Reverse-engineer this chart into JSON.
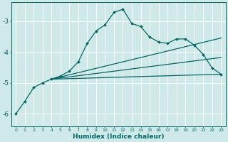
{
  "xlabel": "Humidex (Indice chaleur)",
  "background_color": "#cfe9e9",
  "grid_color": "#ffffff",
  "line_color": "#006666",
  "xlim": [
    -0.5,
    23.5
  ],
  "ylim": [
    -6.4,
    -2.4
  ],
  "yticks": [
    -6,
    -5,
    -4,
    -3
  ],
  "xticks": [
    0,
    1,
    2,
    3,
    4,
    5,
    6,
    7,
    8,
    9,
    10,
    11,
    12,
    13,
    14,
    15,
    16,
    17,
    18,
    19,
    20,
    21,
    22,
    23
  ],
  "series1_x": [
    0,
    1,
    2,
    3,
    4,
    5,
    6,
    7,
    8,
    9,
    10,
    11,
    12,
    13,
    14,
    15,
    16,
    17,
    18,
    19,
    20,
    21,
    22,
    23
  ],
  "series1_y": [
    -6.0,
    -5.6,
    -5.15,
    -5.0,
    -4.88,
    -4.78,
    -4.62,
    -4.32,
    -3.72,
    -3.32,
    -3.12,
    -2.72,
    -2.62,
    -3.08,
    -3.18,
    -3.52,
    -3.68,
    -3.72,
    -3.58,
    -3.58,
    -3.78,
    -4.08,
    -4.52,
    -4.72
  ],
  "line1_x": [
    4,
    23
  ],
  "line1_y": [
    -4.88,
    -3.55
  ],
  "line2_x": [
    4,
    23
  ],
  "line2_y": [
    -4.88,
    -4.18
  ],
  "line3_x": [
    4,
    23
  ],
  "line3_y": [
    -4.88,
    -4.72
  ]
}
